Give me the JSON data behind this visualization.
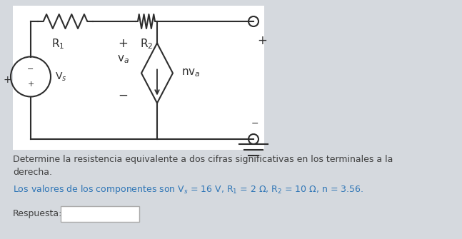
{
  "bg_color": "#d5d9de",
  "circuit_bg": "#ffffff",
  "text1": "Determine la resistencia equivalente a dos cifras significativas en los terminales a la",
  "text2": "derecha.",
  "text3": "Los valores de los componentes son V$_s$ = 16 V, R$_1$ = 2 Ω, R$_2$ = 10 Ω, n = 3.56.",
  "text3_color": "#2e75b6",
  "text1_color": "#404040",
  "label_color": "#404040",
  "respuesta_label": "Respuesta:"
}
